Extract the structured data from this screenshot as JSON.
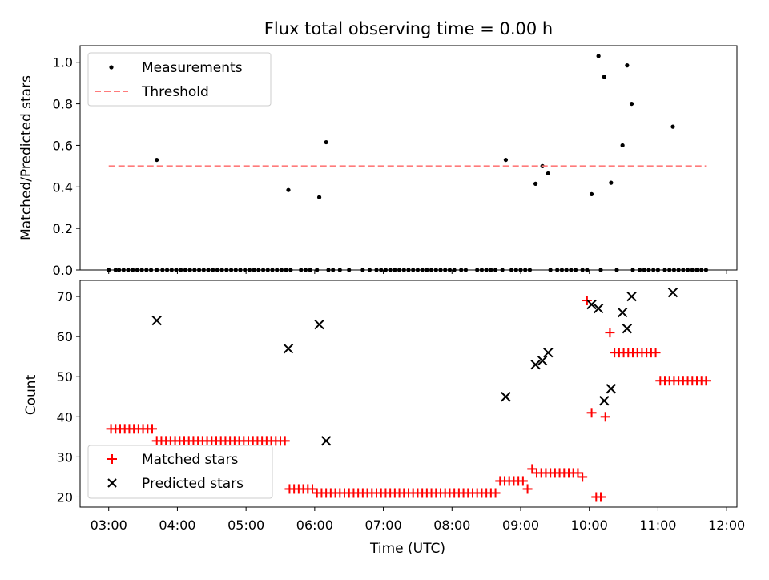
{
  "chart_data": [
    {
      "type": "scatter",
      "title": "Flux total observing time = 0.00 h",
      "ylabel": "Matched/Predicted stars",
      "xlabel": "",
      "ylim": [
        0,
        1.08
      ],
      "yticks": [
        "0.0",
        "0.2",
        "0.4",
        "0.6",
        "0.8",
        "1.0"
      ],
      "legend_position": "upper-left",
      "series": [
        {
          "name": "Measurements",
          "marker": "dot",
          "color": "#000000",
          "x": [
            "03:00",
            "03:06",
            "03:09",
            "03:13",
            "03:17",
            "03:21",
            "03:25",
            "03:29",
            "03:33",
            "03:37",
            "03:42",
            "03:47",
            "03:51",
            "03:55",
            "03:59",
            "04:03",
            "04:07",
            "04:11",
            "04:15",
            "04:19",
            "04:23",
            "04:27",
            "04:31",
            "04:35",
            "04:39",
            "04:43",
            "04:47",
            "04:51",
            "04:55",
            "04:59",
            "05:03",
            "05:07",
            "05:11",
            "05:15",
            "05:19",
            "05:23",
            "05:27",
            "05:31",
            "05:35",
            "05:39",
            "05:48",
            "05:52",
            "05:56",
            "06:02",
            "06:12",
            "06:16",
            "06:22",
            "06:30",
            "06:42",
            "06:48",
            "06:54",
            "06:58",
            "07:02",
            "07:06",
            "07:10",
            "07:14",
            "07:18",
            "07:22",
            "07:26",
            "07:30",
            "07:34",
            "07:38",
            "07:42",
            "07:46",
            "07:50",
            "07:54",
            "07:58",
            "08:02",
            "08:08",
            "08:12",
            "08:22",
            "08:26",
            "08:30",
            "08:34",
            "08:38",
            "08:44",
            "08:52",
            "08:56",
            "09:00",
            "09:04",
            "09:08",
            "09:26",
            "09:32",
            "09:36",
            "09:40",
            "09:44",
            "09:48",
            "09:54",
            "09:58",
            "10:10",
            "10:24",
            "10:38",
            "10:44",
            "10:48",
            "10:52",
            "10:56",
            "11:00",
            "11:06",
            "11:10",
            "11:14",
            "11:18",
            "11:22",
            "11:26",
            "11:30",
            "11:34",
            "11:38",
            "11:42",
            "03:42",
            "05:37",
            "06:04",
            "06:10",
            "08:47",
            "09:13",
            "09:19",
            "09:24",
            "10:02",
            "10:08",
            "10:13",
            "10:19",
            "10:29",
            "10:33",
            "10:37",
            "11:13"
          ],
          "y": [
            0,
            0,
            0,
            0,
            0,
            0,
            0,
            0,
            0,
            0,
            0,
            0,
            0,
            0,
            0,
            0,
            0,
            0,
            0,
            0,
            0,
            0,
            0,
            0,
            0,
            0,
            0,
            0,
            0,
            0,
            0,
            0,
            0,
            0,
            0,
            0,
            0,
            0,
            0,
            0,
            0,
            0,
            0,
            0,
            0,
            0,
            0,
            0,
            0,
            0,
            0,
            0,
            0,
            0,
            0,
            0,
            0,
            0,
            0,
            0,
            0,
            0,
            0,
            0,
            0,
            0,
            0,
            0,
            0,
            0,
            0,
            0,
            0,
            0,
            0,
            0,
            0,
            0,
            0,
            0,
            0,
            0,
            0,
            0,
            0,
            0,
            0,
            0,
            0,
            0,
            0,
            0,
            0,
            0,
            0,
            0,
            0,
            0,
            0,
            0,
            0,
            0,
            0,
            0,
            0,
            0,
            0,
            0.53,
            0.385,
            0.35,
            0.615,
            0.53,
            0.415,
            0.5,
            0.465,
            0.365,
            1.03,
            0.93,
            0.42,
            0.6,
            0.985,
            0.8,
            0.69
          ]
        },
        {
          "name": "Threshold",
          "marker": "dashed-line",
          "color": "#ff7b7b",
          "x": [
            "03:00",
            "11:42"
          ],
          "y": [
            0.5,
            0.5
          ]
        }
      ]
    },
    {
      "type": "scatter",
      "title": "",
      "ylabel": "Count",
      "xlabel": "Time (UTC)",
      "ylim": [
        17.5,
        74
      ],
      "yticks": [
        "20",
        "30",
        "40",
        "50",
        "60",
        "70"
      ],
      "xticks": [
        "03:00",
        "04:00",
        "05:00",
        "06:00",
        "07:00",
        "08:00",
        "09:00",
        "10:00",
        "11:00",
        "12:00"
      ],
      "legend_position": "lower-left",
      "series": [
        {
          "name": "Matched stars",
          "marker": "plus",
          "color": "#ff0000",
          "x": [
            "03:02",
            "03:06",
            "03:10",
            "03:14",
            "03:18",
            "03:22",
            "03:26",
            "03:30",
            "03:34",
            "03:38",
            "03:42",
            "03:46",
            "03:50",
            "03:54",
            "03:58",
            "04:02",
            "04:06",
            "04:10",
            "04:14",
            "04:18",
            "04:22",
            "04:26",
            "04:30",
            "04:34",
            "04:38",
            "04:42",
            "04:46",
            "04:50",
            "04:54",
            "04:58",
            "05:02",
            "05:06",
            "05:10",
            "05:14",
            "05:18",
            "05:22",
            "05:26",
            "05:30",
            "05:34",
            "05:38",
            "05:42",
            "05:46",
            "05:50",
            "05:54",
            "05:58",
            "06:02",
            "06:06",
            "06:10",
            "06:14",
            "06:18",
            "06:22",
            "06:26",
            "06:30",
            "06:34",
            "06:38",
            "06:42",
            "06:46",
            "06:50",
            "06:54",
            "06:58",
            "07:02",
            "07:06",
            "07:10",
            "07:14",
            "07:18",
            "07:22",
            "07:26",
            "07:30",
            "07:34",
            "07:38",
            "07:42",
            "07:46",
            "07:50",
            "07:54",
            "07:58",
            "08:02",
            "08:06",
            "08:10",
            "08:14",
            "08:18",
            "08:22",
            "08:26",
            "08:30",
            "08:34",
            "08:38",
            "08:42",
            "08:46",
            "08:50",
            "08:54",
            "08:58",
            "09:02",
            "09:06",
            "09:10",
            "09:14",
            "09:18",
            "09:22",
            "09:26",
            "09:30",
            "09:34",
            "09:38",
            "09:42",
            "09:46",
            "09:50",
            "09:54",
            "09:58",
            "10:02",
            "10:06",
            "10:10",
            "10:14",
            "10:18",
            "10:22",
            "10:26",
            "10:30",
            "10:34",
            "10:38",
            "10:42",
            "10:46",
            "10:50",
            "10:54",
            "10:58",
            "11:02",
            "11:06",
            "11:10",
            "11:14",
            "11:18",
            "11:22",
            "11:26",
            "11:30",
            "11:34",
            "11:38",
            "11:42"
          ],
          "y": [
            37,
            37,
            37,
            37,
            37,
            37,
            37,
            37,
            37,
            37,
            34,
            34,
            34,
            34,
            34,
            34,
            34,
            34,
            34,
            34,
            34,
            34,
            34,
            34,
            34,
            34,
            34,
            34,
            34,
            34,
            34,
            34,
            34,
            34,
            34,
            34,
            34,
            34,
            34,
            22,
            22,
            22,
            22,
            22,
            22,
            21,
            21,
            21,
            21,
            21,
            21,
            21,
            21,
            21,
            21,
            21,
            21,
            21,
            21,
            21,
            21,
            21,
            21,
            21,
            21,
            21,
            21,
            21,
            21,
            21,
            21,
            21,
            21,
            21,
            21,
            21,
            21,
            21,
            21,
            21,
            21,
            21,
            21,
            21,
            21,
            24,
            24,
            24,
            24,
            24,
            24,
            22,
            27,
            26,
            26,
            26,
            26,
            26,
            26,
            26,
            26,
            26,
            26,
            25,
            69,
            41,
            20,
            20,
            40,
            61,
            56,
            56,
            56,
            56,
            56,
            56,
            56,
            56,
            56,
            56,
            49,
            49,
            49,
            49,
            49,
            49,
            49,
            49,
            49,
            49,
            49
          ],
          "note_marker_count": 0
        },
        {
          "name": "Predicted stars",
          "marker": "x",
          "color": "#000000",
          "x": [
            "03:42",
            "05:37",
            "06:04",
            "06:10",
            "08:47",
            "09:13",
            "09:19",
            "09:24",
            "10:02",
            "10:08",
            "10:13",
            "10:19",
            "10:29",
            "10:33",
            "10:37",
            "11:13"
          ],
          "y": [
            64,
            57,
            63,
            34,
            45,
            53,
            54,
            56,
            68,
            67,
            44,
            47,
            66,
            62,
            70,
            71
          ]
        }
      ]
    }
  ]
}
